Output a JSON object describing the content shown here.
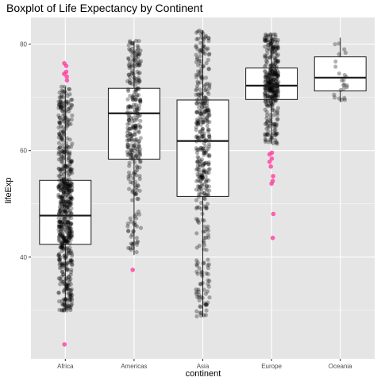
{
  "chart_data": {
    "type": "boxplot",
    "title": "Boxplot of Life Expectancy by Continent",
    "xlabel": "continent",
    "ylabel": "lifeExp",
    "categories": [
      "Africa",
      "Americas",
      "Asia",
      "Europe",
      "Oceania"
    ],
    "ylim": [
      20.9,
      85.0
    ],
    "yticks": [
      40,
      60,
      80
    ],
    "grid": true,
    "colors": {
      "panel": "#e5e5e5",
      "grid_major": "#ffffff",
      "box_fill": "#ffffff",
      "box_line": "#1a1a1a",
      "point": "#000000",
      "outlier": "#ff3399"
    },
    "boxes": [
      {
        "category": "Africa",
        "q1": 42.4,
        "median": 47.8,
        "q3": 54.4,
        "whisker_low": 30.0,
        "whisker_high": 72.0,
        "outliers": [
          76.4,
          75.9,
          74.8,
          74.4,
          73.9,
          73.2,
          23.6
        ]
      },
      {
        "category": "Americas",
        "q1": 58.4,
        "median": 67.0,
        "q3": 71.7,
        "whisker_low": 40.4,
        "whisker_high": 80.6,
        "outliers": [
          37.6
        ]
      },
      {
        "category": "Asia",
        "q1": 51.4,
        "median": 61.8,
        "q3": 69.5,
        "whisker_low": 28.8,
        "whisker_high": 82.6,
        "outliers": []
      },
      {
        "category": "Europe",
        "q1": 69.6,
        "median": 72.2,
        "q3": 75.5,
        "whisker_low": 61.3,
        "whisker_high": 81.8,
        "outliers": [
          59.6,
          59.3,
          58.5,
          57.9,
          57.0,
          55.2,
          54.3,
          53.8,
          48.1,
          43.6
        ]
      },
      {
        "category": "Oceania",
        "q1": 71.2,
        "median": 73.7,
        "q3": 77.6,
        "whisker_low": 69.1,
        "whisker_high": 81.2,
        "outliers": []
      }
    ]
  }
}
